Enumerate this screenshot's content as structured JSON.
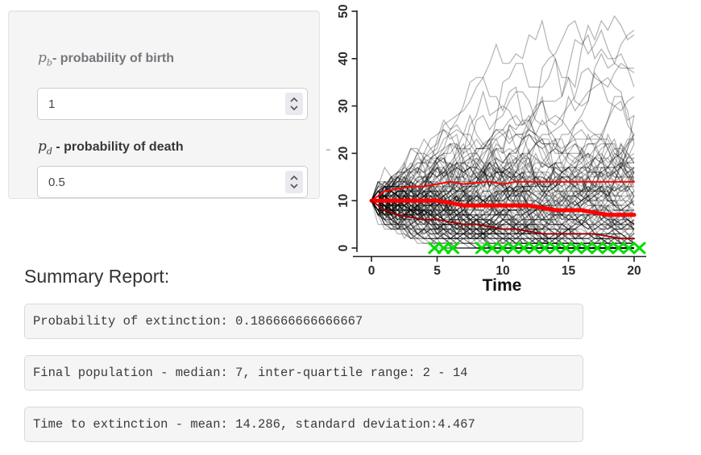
{
  "inputs_panel": {
    "birth_label_math": "p",
    "birth_label_sub": "b",
    "birth_label_rest": "- probability of birth",
    "birth_value": "1",
    "death_label_math": "p",
    "death_label_sub": "d",
    "death_label_rest": " - probability of death",
    "death_value": "0.5"
  },
  "summary": {
    "heading": "Summary Report:",
    "lines": [
      "Probability of extinction: 0.186666666666667",
      "Final population - median: 7, inter-quartile range: 2 - 14",
      "Time to extinction - mean: 14.286, standard deviation:4.467"
    ]
  },
  "chart_data": {
    "type": "line",
    "title": "",
    "xlabel": "Time",
    "ylabel": "",
    "xlim": [
      0,
      20
    ],
    "ylim": [
      0,
      50
    ],
    "x_ticks": [
      0,
      5,
      10,
      15,
      20
    ],
    "y_ticks": [
      0,
      10,
      20,
      30,
      40,
      50
    ],
    "grid": false,
    "legend": "none",
    "x": [
      0,
      1,
      2,
      3,
      4,
      5,
      6,
      7,
      8,
      9,
      10,
      11,
      12,
      13,
      14,
      15,
      16,
      17,
      18,
      19,
      20
    ],
    "series": [
      {
        "name": "upper-quartile",
        "color": "#ff0000",
        "width": 2,
        "values": [
          10,
          12,
          12.5,
          13,
          13,
          13.5,
          14,
          13.5,
          13.8,
          14,
          13.5,
          14,
          14,
          14,
          14,
          14,
          14,
          14,
          14,
          14,
          14
        ]
      },
      {
        "name": "median",
        "color": "#ff0000",
        "width": 5,
        "values": [
          10,
          10,
          10,
          10,
          10,
          10,
          9.5,
          9,
          9,
          9,
          9,
          9,
          9,
          8.5,
          8,
          8,
          8,
          7.5,
          7,
          7,
          7
        ]
      },
      {
        "name": "lower-quartile",
        "color": "#a00000",
        "width": 2,
        "values": [
          10,
          8,
          7,
          6.5,
          6,
          6,
          5.5,
          5,
          5,
          4.5,
          4,
          4,
          3.5,
          3,
          3,
          3,
          3,
          3,
          2.5,
          2,
          2
        ]
      }
    ],
    "extinction_markers": {
      "symbol": "x",
      "color": "#00df00",
      "y": 0,
      "times": [
        4.8,
        5.5,
        6.2,
        8.4,
        9.2,
        10,
        10.8,
        11.6,
        12.4,
        13.2,
        14,
        14.8,
        15.6,
        16.4,
        17.2,
        18,
        18.8,
        19.6,
        20.4
      ]
    },
    "ensemble": {
      "n_paths": 150,
      "n_extinct": 28,
      "start_population": 10,
      "time_steps": 20,
      "color": "rgba(0,0,0,0.3)"
    }
  }
}
